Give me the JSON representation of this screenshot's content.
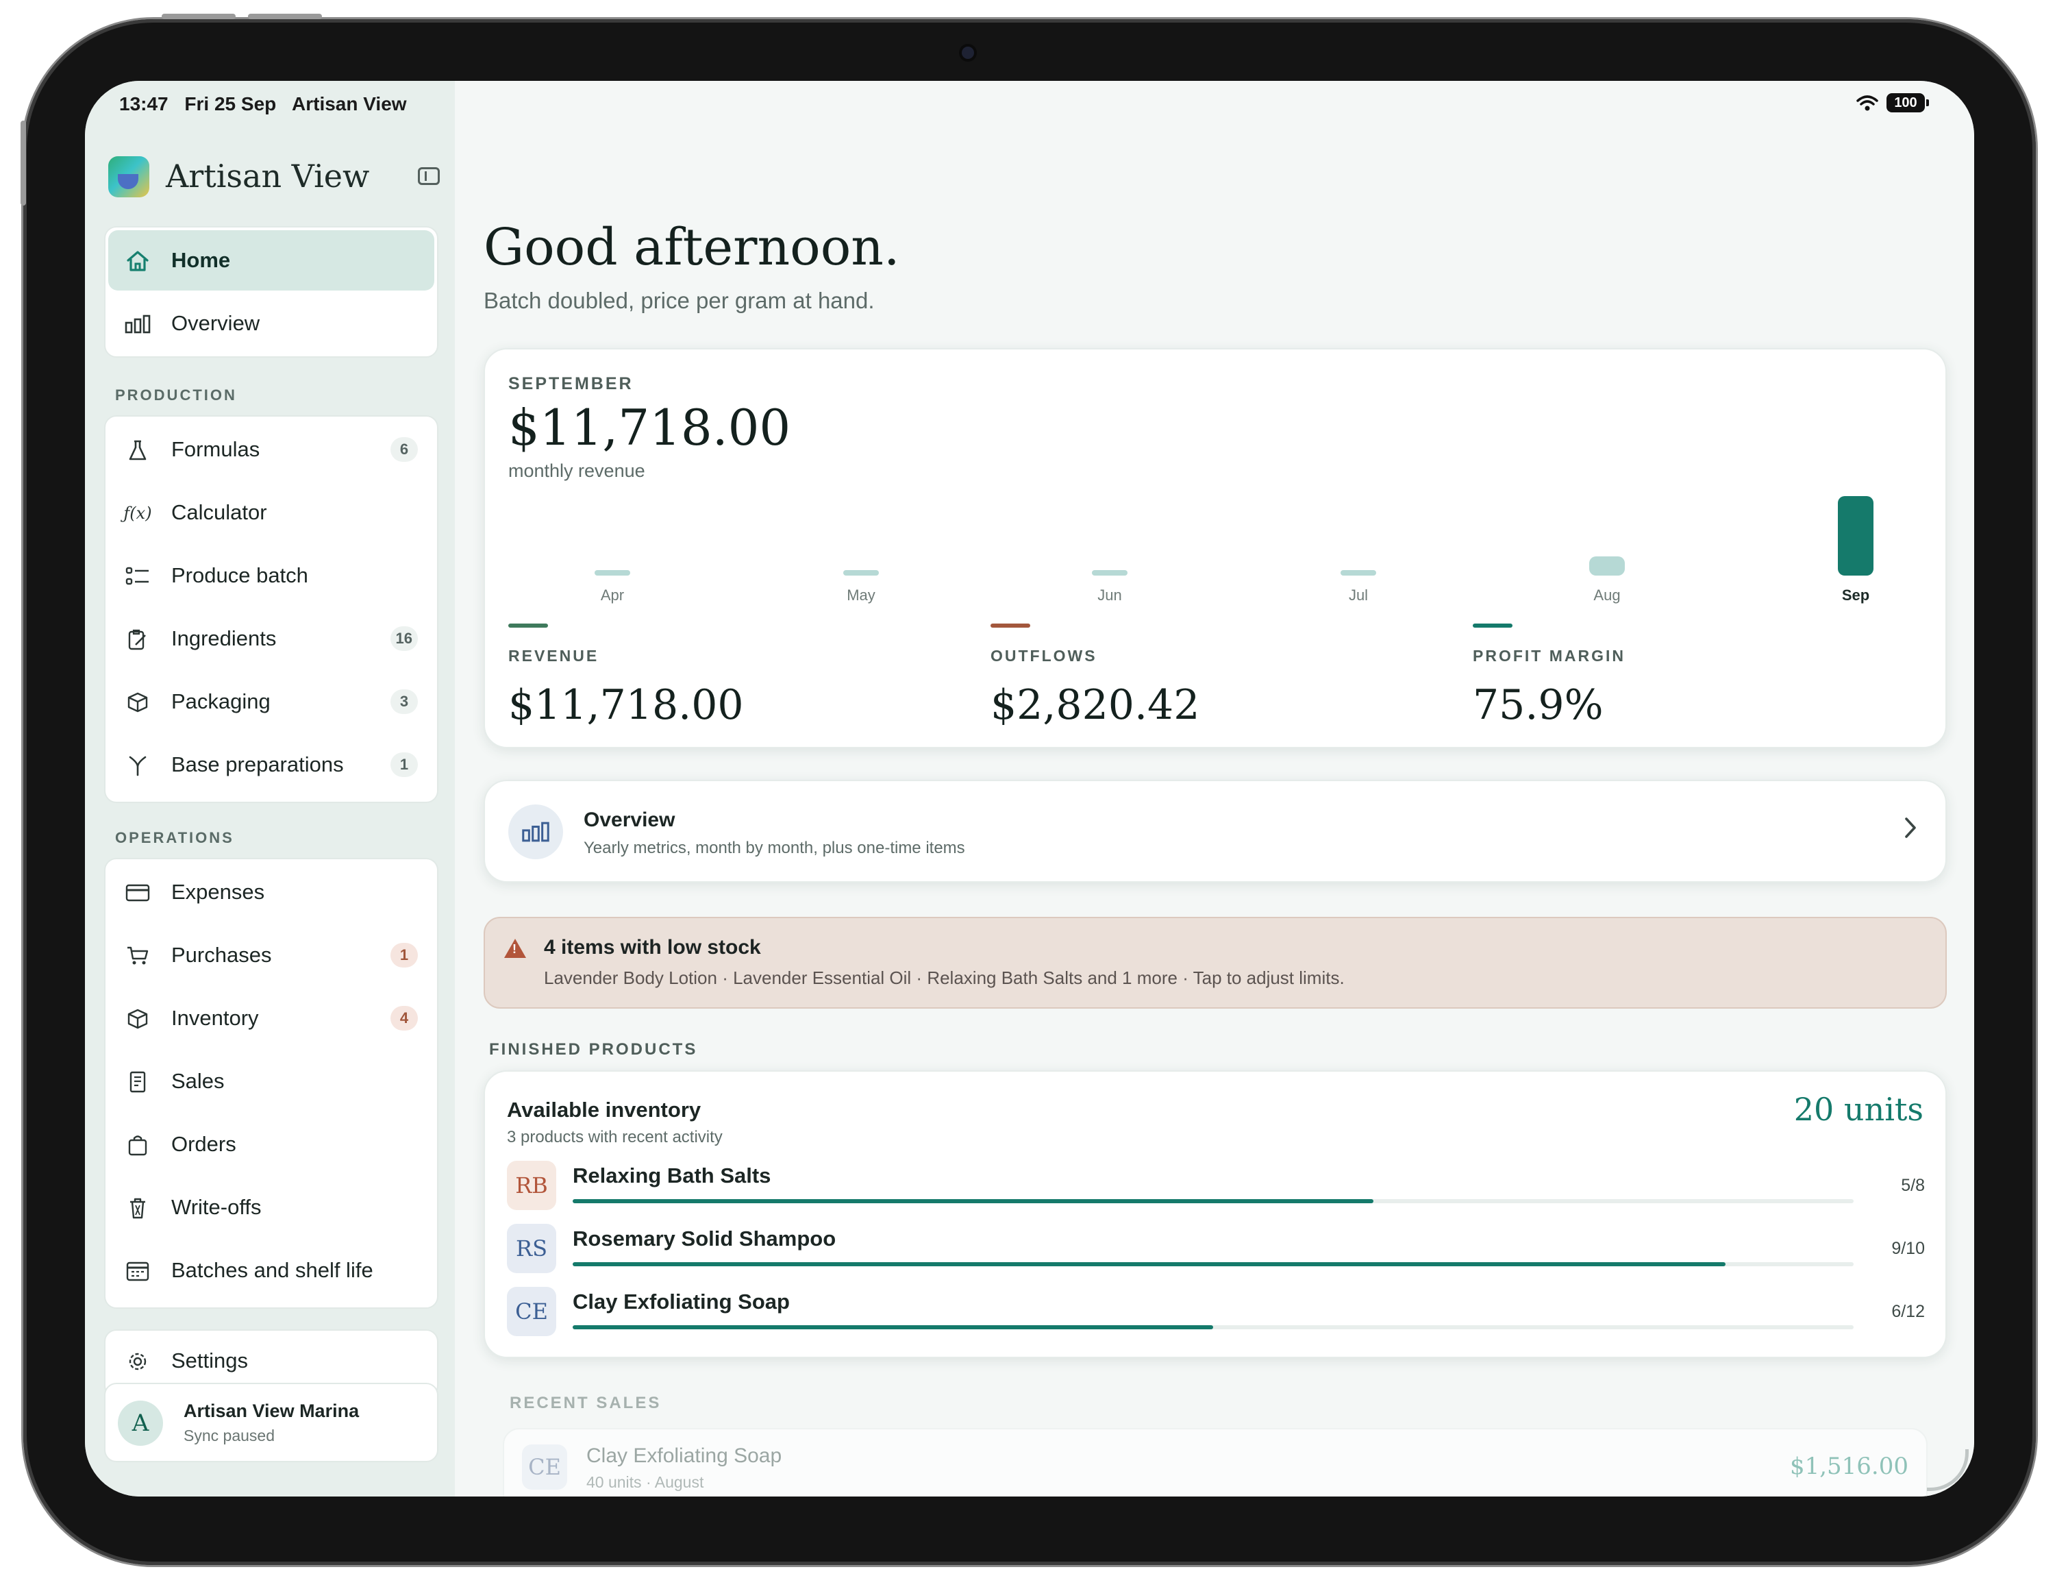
{
  "status": {
    "time": "13:47",
    "date": "Fri 25 Sep",
    "app": "Artisan View",
    "battery": "100"
  },
  "app": {
    "title": "Artisan View"
  },
  "nav": {
    "top": [
      {
        "label": "Home",
        "icon": "home-icon"
      },
      {
        "label": "Overview",
        "icon": "bar-chart-icon"
      }
    ],
    "production_label": "PRODUCTION",
    "production": [
      {
        "label": "Formulas",
        "badge": "6",
        "icon": "flask-icon"
      },
      {
        "label": "Calculator",
        "badge": "",
        "icon": "function-icon"
      },
      {
        "label": "Produce batch",
        "badge": "",
        "icon": "checklist-icon"
      },
      {
        "label": "Ingredients",
        "badge": "16",
        "icon": "clipboard-edit-icon"
      },
      {
        "label": "Packaging",
        "badge": "3",
        "icon": "box-icon"
      },
      {
        "label": "Base preparations",
        "badge": "1",
        "icon": "branch-icon"
      }
    ],
    "operations_label": "OPERATIONS",
    "operations": [
      {
        "label": "Expenses",
        "badge": "",
        "icon": "credit-card-icon"
      },
      {
        "label": "Purchases",
        "badge": "1",
        "icon": "cart-icon"
      },
      {
        "label": "Inventory",
        "badge": "4",
        "icon": "box-icon"
      },
      {
        "label": "Sales",
        "badge": "",
        "icon": "receipt-icon"
      },
      {
        "label": "Orders",
        "badge": "",
        "icon": "bag-icon"
      },
      {
        "label": "Write-offs",
        "badge": "",
        "icon": "trash-icon"
      },
      {
        "label": "Batches and shelf life",
        "badge": "",
        "icon": "calendar-icon"
      }
    ],
    "settings": "Settings",
    "profile": {
      "initial": "A",
      "name": "Artisan View Marina",
      "status": "Sync paused"
    }
  },
  "main": {
    "greeting": "Good afternoon.",
    "subtitle": "Batch doubled, price per gram at hand."
  },
  "revenue_card": {
    "kicker": "SEPTEMBER",
    "amount": "$11,718.00",
    "caption": "monthly revenue",
    "metrics": [
      {
        "label": "REVENUE",
        "value": "$11,718.00",
        "color": "#3f7a5c"
      },
      {
        "label": "OUTFLOWS",
        "value": "$2,820.42",
        "color": "#a3573c"
      },
      {
        "label": "PROFIT MARGIN",
        "value": "75.9%",
        "color": "#157a6b"
      }
    ]
  },
  "chart_data": {
    "type": "bar",
    "categories": [
      "Apr",
      "May",
      "Jun",
      "Jul",
      "Aug",
      "Sep"
    ],
    "values": [
      0,
      0,
      0,
      0,
      2800,
      11718
    ],
    "highlight": "Sep",
    "colors": {
      "normal": "#b6d9d5",
      "highlight": "#157a6b"
    }
  },
  "overview_card": {
    "title": "Overview",
    "subtitle": "Yearly metrics, month by month, plus one-time items"
  },
  "low_stock": {
    "title": "4 items with low stock",
    "details": "Lavender Body Lotion · Lavender Essential Oil · Relaxing Bath Salts and 1 more · Tap to adjust limits."
  },
  "finished_products": {
    "section_label": "FINISHED PRODUCTS",
    "title": "Available inventory",
    "subtitle": "3 products with recent activity",
    "total": "20 units",
    "products": [
      {
        "initials": "RB",
        "name": "Relaxing Bath Salts",
        "count": "5/8",
        "fraction": 0.625,
        "bg": "#f6e9e2",
        "fg": "#b2553a"
      },
      {
        "initials": "RS",
        "name": "Rosemary Solid Shampoo",
        "count": "9/10",
        "fraction": 0.9,
        "bg": "#e6ebf3",
        "fg": "#3c5f94"
      },
      {
        "initials": "CE",
        "name": "Clay Exfoliating Soap",
        "count": "6/12",
        "fraction": 0.5,
        "bg": "#e6ebf3",
        "fg": "#3c5f94"
      }
    ]
  },
  "recent_sales": {
    "section_label": "RECENT SALES",
    "items": [
      {
        "initials": "CE",
        "name": "Clay Exfoliating Soap",
        "detail": "40 units · August",
        "amount": "$1,516.00"
      }
    ]
  }
}
